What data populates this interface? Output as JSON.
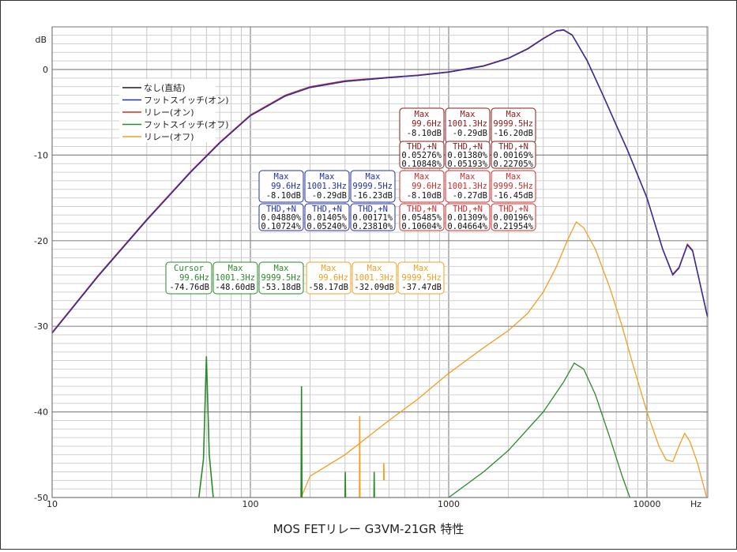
{
  "chart_data": {
    "type": "line",
    "title": "MOS FETリレー G3VM-21GR 特性",
    "y_unit": "dB",
    "x_unit": "Hz",
    "x_scale": "log",
    "xlim": [
      10,
      30000
    ],
    "ylim": [
      -50,
      4
    ],
    "x_ticks": [
      "10",
      "100",
      "1000",
      "10000"
    ],
    "y_ticks": [
      "0",
      "-10",
      "-20",
      "-30",
      "-40",
      "-50"
    ],
    "grid": true,
    "legend_position": "top-left",
    "series": [
      {
        "name": "なし(直結)",
        "color": "#1a1a1a",
        "points": [
          [
            10,
            -30.8
          ],
          [
            17,
            -24.2
          ],
          [
            30,
            -17.6
          ],
          [
            50,
            -12.0
          ],
          [
            70,
            -8.6
          ],
          [
            100,
            -5.4
          ],
          [
            150,
            -3.1
          ],
          [
            200,
            -2.1
          ],
          [
            300,
            -1.4
          ],
          [
            500,
            -0.95
          ],
          [
            700,
            -0.7
          ],
          [
            1000,
            -0.3
          ],
          [
            1500,
            0.4
          ],
          [
            2000,
            1.3
          ],
          [
            2500,
            2.4
          ],
          [
            3000,
            3.6
          ],
          [
            3500,
            4.5
          ],
          [
            3800,
            4.6
          ],
          [
            4200,
            4.0
          ],
          [
            5000,
            1.0
          ],
          [
            6000,
            -3.0
          ],
          [
            7000,
            -6.5
          ],
          [
            8000,
            -9.5
          ],
          [
            10000,
            -15.0
          ],
          [
            12000,
            -21.0
          ],
          [
            13500,
            -24.0
          ],
          [
            14500,
            -23.2
          ],
          [
            16000,
            -20.5
          ],
          [
            17000,
            -21.2
          ],
          [
            18500,
            -25.0
          ],
          [
            20000,
            -28.5
          ],
          [
            22000,
            -31.5
          ]
        ]
      },
      {
        "name": "フットスイッチ(オン)",
        "color": "#1f2fb0",
        "points": [
          [
            10,
            -30.8
          ],
          [
            17,
            -24.2
          ],
          [
            30,
            -17.6
          ],
          [
            50,
            -12.0
          ],
          [
            70,
            -8.6
          ],
          [
            100,
            -5.4
          ],
          [
            150,
            -3.1
          ],
          [
            200,
            -2.1
          ],
          [
            300,
            -1.4
          ],
          [
            500,
            -0.95
          ],
          [
            700,
            -0.7
          ],
          [
            1000,
            -0.3
          ],
          [
            1500,
            0.4
          ],
          [
            2000,
            1.3
          ],
          [
            2500,
            2.4
          ],
          [
            3000,
            3.6
          ],
          [
            3500,
            4.5
          ],
          [
            3800,
            4.6
          ],
          [
            4200,
            4.0
          ],
          [
            5000,
            1.0
          ],
          [
            6000,
            -3.0
          ],
          [
            7000,
            -6.5
          ],
          [
            8000,
            -9.5
          ],
          [
            10000,
            -15.0
          ],
          [
            12000,
            -21.0
          ],
          [
            13500,
            -24.0
          ],
          [
            14500,
            -23.2
          ],
          [
            16000,
            -20.5
          ],
          [
            17000,
            -21.2
          ],
          [
            18500,
            -25.0
          ],
          [
            20000,
            -28.5
          ],
          [
            22000,
            -31.5
          ]
        ]
      },
      {
        "name": "リレー(オン)",
        "color": "#d42a2a",
        "points": [
          [
            10,
            -30.7
          ],
          [
            17,
            -24.1
          ],
          [
            30,
            -17.5
          ],
          [
            50,
            -11.9
          ],
          [
            70,
            -8.5
          ],
          [
            100,
            -5.3
          ],
          [
            150,
            -3.0
          ],
          [
            200,
            -2.0
          ],
          [
            300,
            -1.3
          ],
          [
            500,
            -0.9
          ],
          [
            700,
            -0.65
          ],
          [
            1000,
            -0.27
          ],
          [
            1500,
            0.45
          ],
          [
            2000,
            1.35
          ],
          [
            2500,
            2.45
          ],
          [
            3000,
            3.65
          ],
          [
            3500,
            4.55
          ],
          [
            3800,
            4.65
          ],
          [
            4200,
            4.05
          ],
          [
            5000,
            1.05
          ],
          [
            6000,
            -2.95
          ],
          [
            7000,
            -6.45
          ],
          [
            8000,
            -9.45
          ],
          [
            10000,
            -14.95
          ],
          [
            12000,
            -20.95
          ],
          [
            13500,
            -23.9
          ],
          [
            14500,
            -23.1
          ],
          [
            16000,
            -20.4
          ],
          [
            17000,
            -21.1
          ],
          [
            18500,
            -24.9
          ],
          [
            20000,
            -28.4
          ],
          [
            22000,
            -31.4
          ]
        ]
      },
      {
        "name": "フットスイッチ(オフ)",
        "color": "#2a8a2a",
        "points": [
          [
            1000,
            -50
          ],
          [
            1500,
            -47.0
          ],
          [
            2000,
            -44.5
          ],
          [
            3000,
            -40.0
          ],
          [
            3800,
            -36.5
          ],
          [
            4300,
            -34.3
          ],
          [
            4800,
            -35.0
          ],
          [
            5500,
            -38.0
          ],
          [
            6500,
            -43.0
          ],
          [
            7500,
            -47.5
          ],
          [
            8200,
            -50
          ]
        ],
        "spikes": [
          [
            55,
            -50
          ],
          [
            58,
            -45.5
          ],
          [
            60,
            -33.5
          ],
          [
            62,
            -45.0
          ],
          [
            65,
            -50
          ],
          [
            180,
            -50
          ],
          [
            181,
            -37.0
          ],
          [
            182,
            -50
          ],
          [
            300,
            -50
          ],
          [
            301,
            -47.0
          ],
          [
            302,
            -50
          ],
          [
            420,
            -50
          ],
          [
            421,
            -47.0
          ],
          [
            422,
            -50
          ]
        ]
      },
      {
        "name": "リレー(オフ)",
        "color": "#f0a020",
        "points": [
          [
            180,
            -50
          ],
          [
            200,
            -47.5
          ],
          [
            300,
            -45.0
          ],
          [
            500,
            -41.0
          ],
          [
            700,
            -38.5
          ],
          [
            1000,
            -35.5
          ],
          [
            1500,
            -32.5
          ],
          [
            2000,
            -30.5
          ],
          [
            2500,
            -28.5
          ],
          [
            3000,
            -26.0
          ],
          [
            3500,
            -23.0
          ],
          [
            4000,
            -19.8
          ],
          [
            4400,
            -17.8
          ],
          [
            4800,
            -18.5
          ],
          [
            5500,
            -21.0
          ],
          [
            6500,
            -25.5
          ],
          [
            7500,
            -30.0
          ],
          [
            8500,
            -34.5
          ],
          [
            10000,
            -40.0
          ],
          [
            11500,
            -44.0
          ],
          [
            12500,
            -45.6
          ],
          [
            13500,
            -45.8
          ],
          [
            14500,
            -44.0
          ],
          [
            15500,
            -42.5
          ],
          [
            16500,
            -43.5
          ],
          [
            18000,
            -46.0
          ],
          [
            20000,
            -50
          ]
        ],
        "spikes": [
          [
            355,
            -50
          ],
          [
            356,
            -40.5
          ],
          [
            357,
            -50
          ],
          [
            470,
            -48.0
          ],
          [
            471,
            -46.0
          ],
          [
            472,
            -48.0
          ]
        ]
      }
    ],
    "annotation_boxes": [
      {
        "color": "#8b1a1a",
        "rows": [
          "Max",
          "99.6Hz",
          "-8.10dB"
        ]
      },
      {
        "color": "#8b1a1a",
        "rows": [
          "Max",
          "1001.3Hz",
          "-0.29dB"
        ]
      },
      {
        "color": "#8b1a1a",
        "rows": [
          "Max",
          "9999.5Hz",
          "-16.20dB"
        ]
      },
      {
        "color": "#8b1a1a",
        "rows": [
          "THD,+N",
          "0.05276%",
          "0.10848%"
        ]
      },
      {
        "color": "#8b1a1a",
        "rows": [
          "THD,+N",
          "0.01380%",
          "0.05193%"
        ]
      },
      {
        "color": "#8b1a1a",
        "rows": [
          "THD,+N",
          "0.00169%",
          "0.22705%"
        ]
      },
      {
        "color": "#1f2fb0",
        "rows": [
          "Max",
          "99.6Hz",
          "-8.10dB"
        ]
      },
      {
        "color": "#1f2fb0",
        "rows": [
          "Max",
          "1001.3Hz",
          "-0.29dB"
        ]
      },
      {
        "color": "#1f2fb0",
        "rows": [
          "Max",
          "9999.5Hz",
          "-16.23dB"
        ]
      },
      {
        "color": "#d42a2a",
        "rows": [
          "Max",
          "99.6Hz",
          "-8.10dB"
        ]
      },
      {
        "color": "#d42a2a",
        "rows": [
          "Max",
          "1001.3Hz",
          "-0.27dB"
        ]
      },
      {
        "color": "#d42a2a",
        "rows": [
          "Max",
          "9999.5Hz",
          "-16.45dB"
        ]
      },
      {
        "color": "#1f2fb0",
        "rows": [
          "THD,+N",
          "0.04880%",
          "0.10724%"
        ]
      },
      {
        "color": "#1f2fb0",
        "rows": [
          "THD,+N",
          "0.01405%",
          "0.05240%"
        ]
      },
      {
        "color": "#1f2fb0",
        "rows": [
          "THD,+N",
          "0.00171%",
          "0.23810%"
        ]
      },
      {
        "color": "#d42a2a",
        "rows": [
          "THD,+N",
          "0.05485%",
          "0.10604%"
        ]
      },
      {
        "color": "#d42a2a",
        "rows": [
          "THD,+N",
          "0.01309%",
          "0.04664%"
        ]
      },
      {
        "color": "#d42a2a",
        "rows": [
          "THD,+N",
          "0.00196%",
          "0.21954%"
        ]
      },
      {
        "color": "#2a8a2a",
        "rows": [
          "Cursor",
          "99.6Hz",
          "-74.76dB"
        ]
      },
      {
        "color": "#2a8a2a",
        "rows": [
          "Max",
          "1001.3Hz",
          "-48.60dB"
        ]
      },
      {
        "color": "#2a8a2a",
        "rows": [
          "Max",
          "9999.5Hz",
          "-53.18dB"
        ]
      },
      {
        "color": "#f0a020",
        "rows": [
          "Max",
          "99.6Hz",
          "-58.17dB"
        ]
      },
      {
        "color": "#f0a020",
        "rows": [
          "Max",
          "1001.3Hz",
          "-32.09dB"
        ]
      },
      {
        "color": "#f0a020",
        "rows": [
          "Max",
          "9999.5Hz",
          "-37.47dB"
        ]
      }
    ]
  }
}
